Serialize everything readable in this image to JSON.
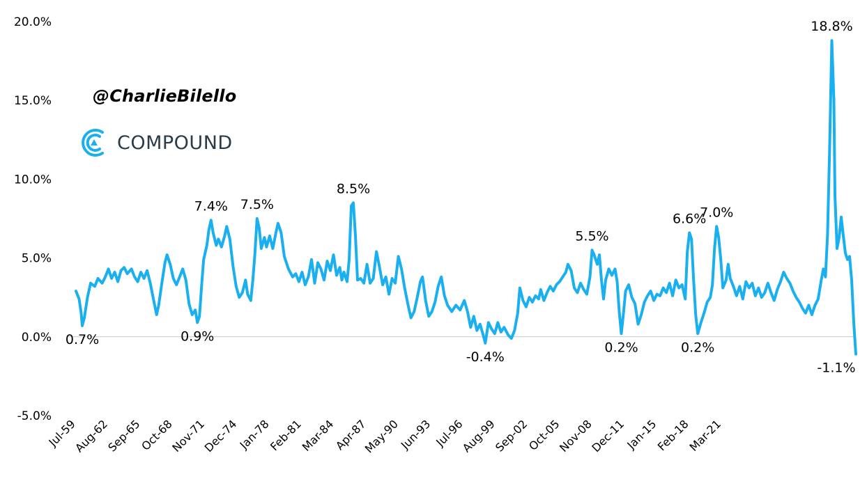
{
  "watermark": {
    "handle": "@CharlieBilello"
  },
  "brand": {
    "name": "COMPOUND",
    "icon": "compound-logo-icon",
    "color": "#1ab0ef"
  },
  "colors": {
    "line": "#1ab0ef",
    "zero_line": "#c8c8c8",
    "brand_text": "#2a3b4a"
  },
  "chart_data": {
    "type": "line",
    "title": "",
    "xlabel": "",
    "ylabel": "",
    "ylim": [
      -5.0,
      20.0
    ],
    "y_ticks": [
      "20.0%",
      "15.0%",
      "10.0%",
      "5.0%",
      "0.0%",
      "-5.0%"
    ],
    "y_tick_values": [
      20,
      15,
      10,
      5,
      0,
      -5
    ],
    "x_ticks": [
      "Jul-59",
      "Aug-62",
      "Sep-65",
      "Oct-68",
      "Nov-71",
      "Dec-74",
      "Jan-78",
      "Feb-81",
      "Mar-84",
      "Apr-87",
      "May-90",
      "Jun-93",
      "Jul-96",
      "Aug-99",
      "Sep-02",
      "Oct-05",
      "Nov-08",
      "Dec-11",
      "Jan-15",
      "Feb-18",
      "Mar-21"
    ],
    "x_tick_values": [
      1959.5,
      1962.58,
      1965.67,
      1968.75,
      1971.83,
      1974.92,
      1978.0,
      1981.08,
      1984.17,
      1987.25,
      1990.33,
      1993.42,
      1996.5,
      1999.58,
      2002.67,
      2005.75,
      2008.83,
      2011.92,
      2015.0,
      2018.08,
      2021.17
    ],
    "grid": false,
    "legend": "none",
    "series": [
      {
        "points": [
          [
            1959.5,
            2.9
          ],
          [
            1959.8,
            2.4
          ],
          [
            1960.0,
            1.5
          ],
          [
            1960.1,
            0.7
          ],
          [
            1960.3,
            1.2
          ],
          [
            1960.6,
            2.5
          ],
          [
            1960.9,
            3.4
          ],
          [
            1961.3,
            3.2
          ],
          [
            1961.6,
            3.7
          ],
          [
            1962.0,
            3.4
          ],
          [
            1962.3,
            3.8
          ],
          [
            1962.6,
            4.3
          ],
          [
            1962.9,
            3.7
          ],
          [
            1963.2,
            4.1
          ],
          [
            1963.5,
            3.5
          ],
          [
            1963.8,
            4.2
          ],
          [
            1964.1,
            4.4
          ],
          [
            1964.4,
            4.0
          ],
          [
            1964.8,
            4.3
          ],
          [
            1965.1,
            3.8
          ],
          [
            1965.4,
            3.5
          ],
          [
            1965.7,
            4.1
          ],
          [
            1966.0,
            3.7
          ],
          [
            1966.3,
            4.2
          ],
          [
            1966.6,
            3.4
          ],
          [
            1966.9,
            2.4
          ],
          [
            1967.2,
            1.4
          ],
          [
            1967.4,
            2.0
          ],
          [
            1967.7,
            3.4
          ],
          [
            1968.0,
            4.7
          ],
          [
            1968.2,
            5.2
          ],
          [
            1968.5,
            4.6
          ],
          [
            1968.8,
            3.7
          ],
          [
            1969.1,
            3.3
          ],
          [
            1969.4,
            3.8
          ],
          [
            1969.7,
            4.3
          ],
          [
            1970.0,
            3.6
          ],
          [
            1970.3,
            2.1
          ],
          [
            1970.6,
            1.4
          ],
          [
            1970.9,
            1.7
          ],
          [
            1971.1,
            0.9
          ],
          [
            1971.3,
            1.3
          ],
          [
            1971.5,
            3.2
          ],
          [
            1971.7,
            4.9
          ],
          [
            1972.0,
            5.8
          ],
          [
            1972.2,
            6.8
          ],
          [
            1972.4,
            7.4
          ],
          [
            1972.6,
            6.6
          ],
          [
            1972.9,
            5.8
          ],
          [
            1973.1,
            6.2
          ],
          [
            1973.4,
            5.7
          ],
          [
            1973.7,
            6.4
          ],
          [
            1973.9,
            7.0
          ],
          [
            1974.2,
            6.2
          ],
          [
            1974.5,
            4.5
          ],
          [
            1974.8,
            3.2
          ],
          [
            1975.1,
            2.5
          ],
          [
            1975.4,
            2.8
          ],
          [
            1975.7,
            3.6
          ],
          [
            1975.9,
            2.7
          ],
          [
            1976.2,
            2.3
          ],
          [
            1976.4,
            3.6
          ],
          [
            1976.6,
            5.3
          ],
          [
            1976.8,
            7.5
          ],
          [
            1977.0,
            6.9
          ],
          [
            1977.2,
            5.6
          ],
          [
            1977.5,
            6.3
          ],
          [
            1977.7,
            5.7
          ],
          [
            1978.0,
            6.4
          ],
          [
            1978.3,
            5.6
          ],
          [
            1978.6,
            6.6
          ],
          [
            1978.8,
            7.2
          ],
          [
            1979.1,
            6.6
          ],
          [
            1979.4,
            5.1
          ],
          [
            1979.8,
            4.3
          ],
          [
            1980.2,
            3.8
          ],
          [
            1980.5,
            4.0
          ],
          [
            1980.8,
            3.5
          ],
          [
            1981.1,
            4.1
          ],
          [
            1981.4,
            3.3
          ],
          [
            1981.7,
            3.8
          ],
          [
            1982.0,
            4.9
          ],
          [
            1982.3,
            3.4
          ],
          [
            1982.6,
            4.7
          ],
          [
            1982.9,
            4.3
          ],
          [
            1983.2,
            3.6
          ],
          [
            1983.5,
            4.8
          ],
          [
            1983.8,
            4.2
          ],
          [
            1984.1,
            5.2
          ],
          [
            1984.4,
            3.9
          ],
          [
            1984.7,
            4.4
          ],
          [
            1984.9,
            3.6
          ],
          [
            1985.1,
            4.1
          ],
          [
            1985.4,
            3.5
          ],
          [
            1985.6,
            4.9
          ],
          [
            1985.8,
            8.3
          ],
          [
            1986.0,
            8.5
          ],
          [
            1986.2,
            6.4
          ],
          [
            1986.4,
            3.6
          ],
          [
            1986.7,
            3.7
          ],
          [
            1987.0,
            3.4
          ],
          [
            1987.3,
            4.6
          ],
          [
            1987.6,
            3.4
          ],
          [
            1987.9,
            3.7
          ],
          [
            1988.2,
            5.4
          ],
          [
            1988.5,
            4.4
          ],
          [
            1988.8,
            3.3
          ],
          [
            1989.1,
            3.8
          ],
          [
            1989.4,
            2.7
          ],
          [
            1989.7,
            3.7
          ],
          [
            1990.0,
            3.4
          ],
          [
            1990.3,
            5.1
          ],
          [
            1990.6,
            4.3
          ],
          [
            1990.9,
            3.1
          ],
          [
            1991.2,
            2.1
          ],
          [
            1991.5,
            1.2
          ],
          [
            1991.8,
            1.6
          ],
          [
            1992.1,
            2.5
          ],
          [
            1992.4,
            3.5
          ],
          [
            1992.6,
            3.8
          ],
          [
            1992.9,
            2.3
          ],
          [
            1993.2,
            1.3
          ],
          [
            1993.5,
            1.6
          ],
          [
            1993.8,
            2.2
          ],
          [
            1994.1,
            3.2
          ],
          [
            1994.4,
            3.8
          ],
          [
            1994.7,
            2.6
          ],
          [
            1995.0,
            2.0
          ],
          [
            1995.4,
            1.6
          ],
          [
            1995.8,
            2.0
          ],
          [
            1996.2,
            1.7
          ],
          [
            1996.6,
            2.3
          ],
          [
            1996.9,
            1.6
          ],
          [
            1997.2,
            0.6
          ],
          [
            1997.5,
            1.3
          ],
          [
            1997.8,
            0.4
          ],
          [
            1998.1,
            0.8
          ],
          [
            1998.4,
            0.1
          ],
          [
            1998.6,
            -0.4
          ],
          [
            1998.9,
            0.9
          ],
          [
            1999.2,
            0.5
          ],
          [
            1999.5,
            0.2
          ],
          [
            1999.8,
            0.9
          ],
          [
            2000.1,
            0.3
          ],
          [
            2000.4,
            0.6
          ],
          [
            2000.8,
            0.1
          ],
          [
            2001.1,
            -0.1
          ],
          [
            2001.4,
            0.4
          ],
          [
            2001.7,
            1.5
          ],
          [
            2001.9,
            3.1
          ],
          [
            2002.2,
            2.3
          ],
          [
            2002.5,
            1.9
          ],
          [
            2002.8,
            2.5
          ],
          [
            2003.1,
            2.2
          ],
          [
            2003.4,
            2.6
          ],
          [
            2003.7,
            2.4
          ],
          [
            2003.9,
            3.0
          ],
          [
            2004.2,
            2.3
          ],
          [
            2004.5,
            2.8
          ],
          [
            2004.8,
            3.2
          ],
          [
            2005.1,
            2.9
          ],
          [
            2005.4,
            3.3
          ],
          [
            2005.7,
            3.5
          ],
          [
            2006.0,
            3.8
          ],
          [
            2006.3,
            4.1
          ],
          [
            2006.5,
            4.6
          ],
          [
            2006.8,
            4.2
          ],
          [
            2007.1,
            3.1
          ],
          [
            2007.4,
            2.8
          ],
          [
            2007.7,
            3.4
          ],
          [
            2008.0,
            3.0
          ],
          [
            2008.3,
            2.7
          ],
          [
            2008.6,
            3.8
          ],
          [
            2008.8,
            5.5
          ],
          [
            2009.0,
            5.2
          ],
          [
            2009.3,
            4.6
          ],
          [
            2009.5,
            5.2
          ],
          [
            2009.7,
            3.6
          ],
          [
            2009.9,
            2.4
          ],
          [
            2010.1,
            3.6
          ],
          [
            2010.4,
            4.3
          ],
          [
            2010.7,
            3.9
          ],
          [
            2011.0,
            4.3
          ],
          [
            2011.2,
            3.5
          ],
          [
            2011.4,
            1.6
          ],
          [
            2011.6,
            0.2
          ],
          [
            2011.8,
            1.5
          ],
          [
            2012.0,
            2.9
          ],
          [
            2012.3,
            3.3
          ],
          [
            2012.6,
            2.5
          ],
          [
            2012.9,
            2.1
          ],
          [
            2013.2,
            0.8
          ],
          [
            2013.5,
            1.4
          ],
          [
            2013.8,
            2.2
          ],
          [
            2014.1,
            2.6
          ],
          [
            2014.4,
            2.9
          ],
          [
            2014.7,
            2.3
          ],
          [
            2015.0,
            2.7
          ],
          [
            2015.3,
            2.6
          ],
          [
            2015.6,
            3.1
          ],
          [
            2015.9,
            2.8
          ],
          [
            2016.2,
            3.4
          ],
          [
            2016.5,
            2.6
          ],
          [
            2016.8,
            3.6
          ],
          [
            2017.1,
            3.1
          ],
          [
            2017.4,
            3.3
          ],
          [
            2017.7,
            2.4
          ],
          [
            2017.9,
            5.4
          ],
          [
            2018.1,
            6.6
          ],
          [
            2018.3,
            6.2
          ],
          [
            2018.5,
            3.6
          ],
          [
            2018.7,
            1.4
          ],
          [
            2018.9,
            0.2
          ],
          [
            2019.2,
            0.9
          ],
          [
            2019.5,
            1.5
          ],
          [
            2019.8,
            2.2
          ],
          [
            2020.1,
            2.5
          ],
          [
            2020.3,
            3.3
          ],
          [
            2020.5,
            5.6
          ],
          [
            2020.7,
            7.0
          ],
          [
            2020.9,
            6.3
          ],
          [
            2021.1,
            4.9
          ],
          [
            2021.3,
            3.1
          ],
          [
            2021.6,
            3.6
          ],
          [
            2021.8,
            4.6
          ],
          [
            2022.0,
            3.7
          ],
          [
            2022.3,
            3.2
          ],
          [
            2022.6,
            2.6
          ],
          [
            2022.9,
            3.2
          ],
          [
            2023.2,
            2.4
          ],
          [
            2023.5,
            3.5
          ],
          [
            2023.8,
            3.1
          ],
          [
            2024.1,
            3.4
          ],
          [
            2024.4,
            2.6
          ],
          [
            2024.7,
            3.1
          ],
          [
            2025.0,
            2.5
          ],
          [
            2025.3,
            2.8
          ],
          [
            2025.6,
            3.4
          ],
          [
            2025.9,
            2.8
          ],
          [
            2026.2,
            2.3
          ],
          [
            2026.5,
            3.0
          ],
          [
            2026.8,
            3.5
          ],
          [
            2027.1,
            4.1
          ],
          [
            2027.4,
            3.7
          ],
          [
            2027.7,
            3.4
          ],
          [
            2028.0,
            2.9
          ],
          [
            2028.3,
            2.5
          ],
          [
            2028.6,
            2.2
          ],
          [
            2028.9,
            1.8
          ],
          [
            2029.2,
            1.5
          ],
          [
            2029.5,
            2.0
          ],
          [
            2029.8,
            1.4
          ],
          [
            2030.1,
            2.0
          ],
          [
            2030.4,
            2.4
          ],
          [
            2030.7,
            3.6
          ],
          [
            2030.9,
            4.3
          ],
          [
            2031.1,
            3.8
          ],
          [
            2031.3,
            6.5
          ],
          [
            2031.5,
            12.0
          ],
          [
            2031.7,
            18.8
          ],
          [
            2031.9,
            15.0
          ],
          [
            2032.0,
            9.0
          ],
          [
            2032.2,
            5.6
          ],
          [
            2032.4,
            6.3
          ],
          [
            2032.6,
            7.6
          ],
          [
            2032.8,
            6.4
          ],
          [
            2033.0,
            5.3
          ],
          [
            2033.2,
            4.9
          ],
          [
            2033.4,
            5.1
          ],
          [
            2033.6,
            3.6
          ],
          [
            2033.8,
            0.9
          ],
          [
            2034.0,
            -1.1
          ]
        ]
      }
    ],
    "annotations": [
      {
        "label": "0.7%",
        "x": 1960.1,
        "y": 0.7,
        "pos": "below"
      },
      {
        "label": "0.9%",
        "x": 1971.1,
        "y": 0.9,
        "pos": "below"
      },
      {
        "label": "7.4%",
        "x": 1972.4,
        "y": 7.4,
        "pos": "above"
      },
      {
        "label": "7.5%",
        "x": 1976.8,
        "y": 7.5,
        "pos": "above"
      },
      {
        "label": "8.5%",
        "x": 1986.0,
        "y": 8.5,
        "pos": "above"
      },
      {
        "label": "-0.4%",
        "x": 1998.6,
        "y": -0.4,
        "pos": "below"
      },
      {
        "label": "5.5%",
        "x": 2008.8,
        "y": 5.5,
        "pos": "above"
      },
      {
        "label": "0.2%",
        "x": 2011.6,
        "y": 0.2,
        "pos": "below"
      },
      {
        "label": "6.6%",
        "x": 2018.1,
        "y": 6.6,
        "pos": "above"
      },
      {
        "label": "0.2%",
        "x": 2018.9,
        "y": 0.2,
        "pos": "below"
      },
      {
        "label": "7.0%",
        "x": 2020.7,
        "y": 7.0,
        "pos": "above"
      },
      {
        "label": "18.8%",
        "x": 2031.7,
        "y": 18.8,
        "pos": "above"
      },
      {
        "label": "-1.1%",
        "x": 2034.0,
        "y": -1.1,
        "pos": "below"
      }
    ]
  }
}
